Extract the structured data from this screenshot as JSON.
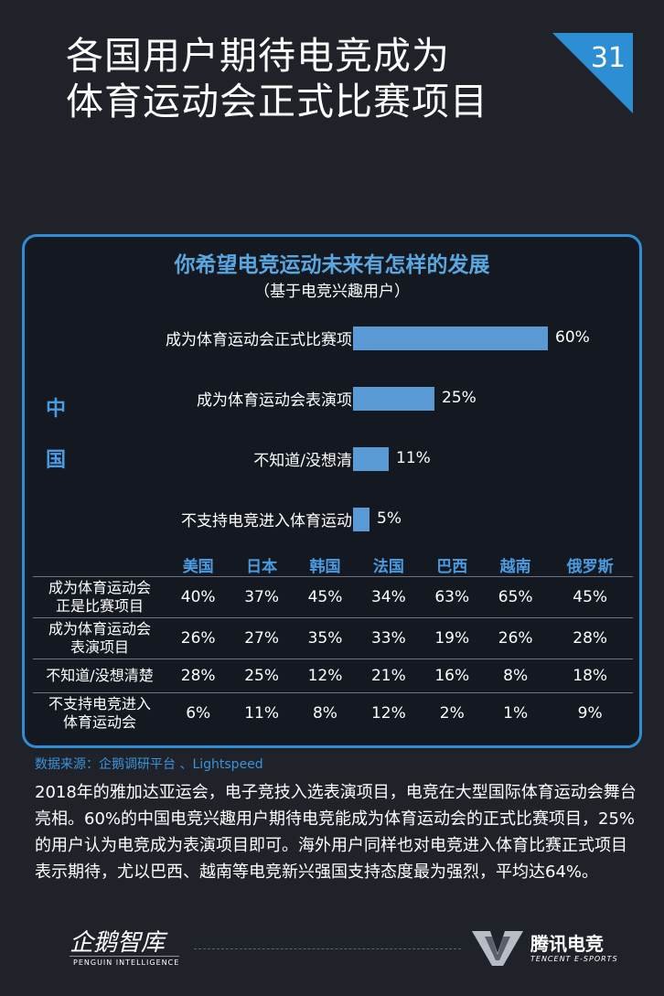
{
  "header": {
    "title_line1": "各国用户期待电竞成为",
    "title_line2": "体育运动会正式比赛项目",
    "page_number": "31"
  },
  "panel": {
    "title": "你希望电竞运动未来有怎样的发展",
    "subtitle": "（基于电竞兴趣用户）",
    "country": "中国"
  },
  "chart_data": {
    "type": "bar",
    "orientation": "horizontal",
    "title": "你希望电竞运动未来有怎样的发展",
    "subtitle": "（基于电竞兴趣用户）",
    "categories": [
      "成为体育运动会正式比赛项目",
      "成为体育运动会表演项目",
      "不知道/没想清楚",
      "不支持电竞进入体育运动会"
    ],
    "values": [
      60,
      25,
      11,
      5
    ],
    "value_labels": [
      "60%",
      "25%",
      "11%",
      "5%"
    ],
    "xlim": [
      0,
      100
    ],
    "bar_color": "#5b9bd5",
    "grid": false
  },
  "table": {
    "columns": [
      "美国",
      "日本",
      "韩国",
      "法国",
      "巴西",
      "越南",
      "俄罗斯"
    ],
    "rows": [
      {
        "label_lines": [
          "成为体育运动会",
          "正是比赛项目"
        ],
        "values": [
          "40%",
          "37%",
          "45%",
          "34%",
          "63%",
          "65%",
          "45%"
        ]
      },
      {
        "label_lines": [
          "成为体育运动会",
          "表演项目"
        ],
        "values": [
          "26%",
          "27%",
          "35%",
          "33%",
          "19%",
          "26%",
          "28%"
        ]
      },
      {
        "label_lines": [
          "不知道/没想清楚"
        ],
        "values": [
          "28%",
          "25%",
          "12%",
          "21%",
          "16%",
          "8%",
          "18%"
        ]
      },
      {
        "label_lines": [
          "不支持电竞进入",
          "体育运动会"
        ],
        "values": [
          "6%",
          "11%",
          "8%",
          "12%",
          "2%",
          "1%",
          "9%"
        ]
      }
    ]
  },
  "source": "数据来源：企鹅调研平台 、Lightspeed",
  "body_text": "2018年的雅加达亚运会，电子竞技入选表演项目，电竞在大型国际体育运动会舞台亮相。60%的中国电竞兴趣用户期待电竞能成为体育运动会的正式比赛项目，25%的用户认为电竞成为表演项目即可。海外用户同样也对电竞进入体育比赛正式项目表示期待，尤以巴西、越南等电竞新兴强国支持态度最为强烈，平均达64%。",
  "footer": {
    "left_logo": "企鹅智库",
    "left_tag": "PENGUIN INTELLIGENCE",
    "right_logo": "腾讯电竞",
    "right_tag": "TENCENT E-SPORTS"
  },
  "colors": {
    "background": "#1f2229",
    "accent": "#2e8ed4",
    "bar": "#5b9bd5",
    "heading_blue": "#4a9be0"
  }
}
